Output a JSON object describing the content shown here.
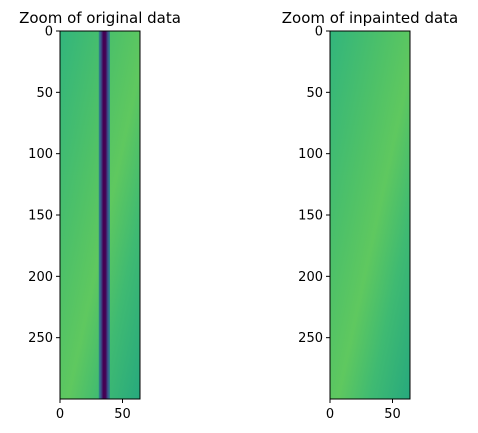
{
  "chart_data": [
    {
      "type": "heatmap",
      "title": "Zoom of original data",
      "xlabel": "",
      "ylabel": "",
      "xlim": [
        0,
        64
      ],
      "ylim": [
        300,
        0
      ],
      "x_ticks": [
        "0",
        "50"
      ],
      "y_ticks": [
        "0",
        "50",
        "100",
        "150",
        "200",
        "250"
      ],
      "colormap": "viridis",
      "description_values": {
        "dark_band_columns": [
          31,
          40
        ]
      }
    },
    {
      "type": "heatmap",
      "title": "Zoom of inpainted data",
      "xlabel": "",
      "ylabel": "",
      "xlim": [
        0,
        64
      ],
      "ylim": [
        300,
        0
      ],
      "x_ticks": [
        "0",
        "50"
      ],
      "y_ticks": [
        "0",
        "50",
        "100",
        "150",
        "200",
        "250"
      ],
      "colormap": "viridis"
    }
  ],
  "colors": {
    "viridis_low": "#440154",
    "viridis_mid": "#2fb47c",
    "viridis_high": "#7ad151",
    "axis": "#000000"
  }
}
